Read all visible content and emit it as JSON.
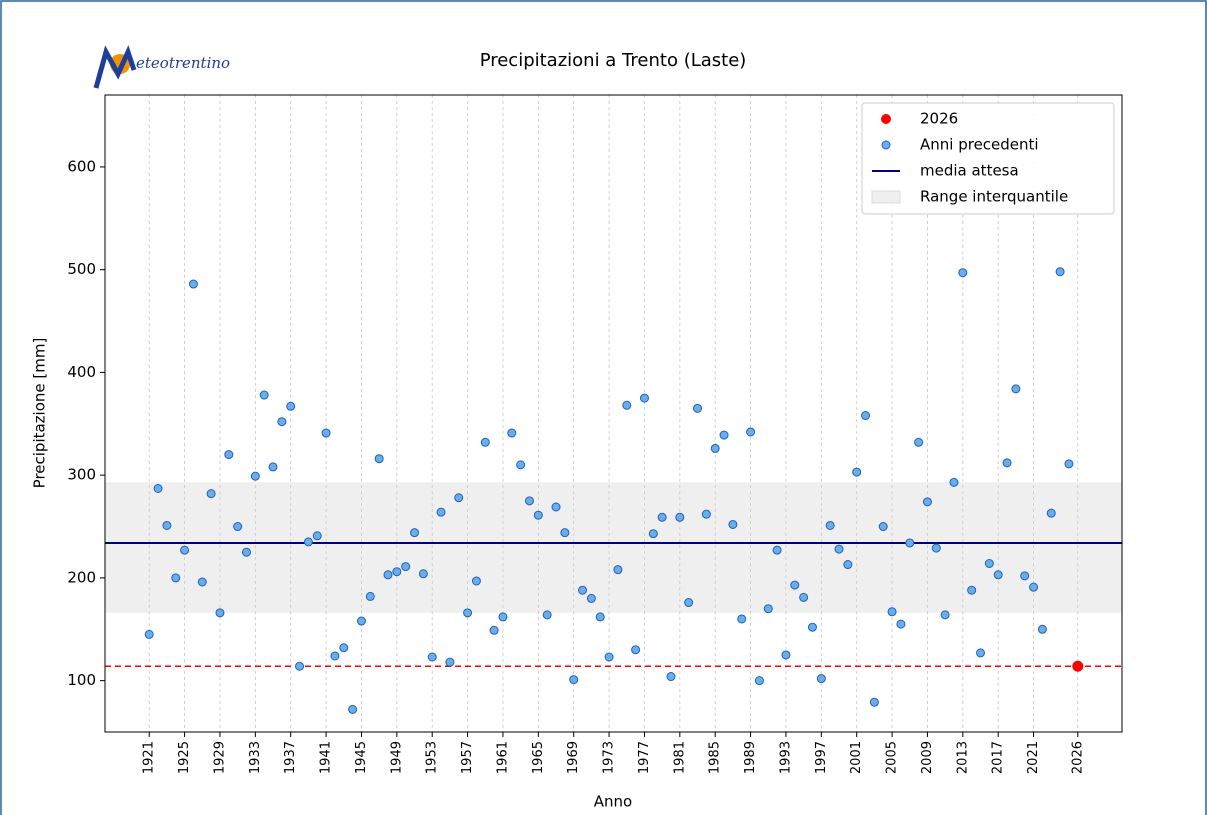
{
  "chart_data": {
    "type": "scatter",
    "title": "Precipitazioni a Trento (Laste)",
    "logo": "eteotrentino",
    "x_label": "Anno",
    "y_label": "Precipitazione [mm]",
    "series": [
      {
        "name": "2026",
        "color": "#ff0000",
        "x": [
          2026
        ],
        "values": [
          114
        ]
      },
      {
        "name": "Anni precedenti",
        "color": "#6aaee8",
        "x": [
          1921,
          1922,
          1923,
          1924,
          1925,
          1926,
          1927,
          1928,
          1929,
          1930,
          1931,
          1932,
          1933,
          1934,
          1935,
          1936,
          1937,
          1938,
          1939,
          1940,
          1941,
          1942,
          1943,
          1944,
          1945,
          1946,
          1947,
          1948,
          1949,
          1950,
          1951,
          1952,
          1953,
          1954,
          1955,
          1956,
          1957,
          1958,
          1959,
          1960,
          1961,
          1962,
          1963,
          1964,
          1965,
          1966,
          1967,
          1968,
          1969,
          1970,
          1971,
          1972,
          1973,
          1974,
          1975,
          1976,
          1977,
          1978,
          1979,
          1980,
          1981,
          1982,
          1983,
          1984,
          1985,
          1986,
          1987,
          1988,
          1989,
          1990,
          1991,
          1992,
          1993,
          1994,
          1995,
          1996,
          1997,
          1998,
          1999,
          2000,
          2001,
          2002,
          2003,
          2004,
          2005,
          2006,
          2007,
          2008,
          2009,
          2010,
          2011,
          2012,
          2013,
          2014,
          2015,
          2016,
          2017,
          2018,
          2019,
          2020,
          2021,
          2022,
          2023,
          2024,
          2025
        ],
        "values": [
          145,
          287,
          251,
          200,
          227,
          486,
          196,
          282,
          166,
          320,
          250,
          225,
          299,
          378,
          308,
          352,
          367,
          114,
          235,
          241,
          341,
          124,
          132,
          72,
          158,
          182,
          316,
          203,
          206,
          211,
          244,
          204,
          123,
          264,
          118,
          278,
          166,
          197,
          332,
          149,
          162,
          341,
          310,
          275,
          261,
          164,
          269,
          244,
          101,
          188,
          180,
          162,
          123,
          208,
          368,
          130,
          375,
          243,
          259,
          104,
          259,
          176,
          365,
          262,
          326,
          339,
          252,
          160,
          342,
          100,
          170,
          227,
          125,
          193,
          181,
          152,
          102,
          251,
          228,
          213,
          303,
          358,
          79,
          250,
          167,
          155,
          234,
          332,
          274,
          229,
          164,
          293,
          497,
          188,
          127,
          214,
          203,
          312,
          384,
          202,
          191,
          150,
          263,
          498,
          311
        ]
      }
    ],
    "mean": {
      "name": "media attesa",
      "value": 234,
      "color": "#000080"
    },
    "iqr": {
      "name": "Range interquantile",
      "values": [
        166,
        293
      ],
      "color": "#efefef"
    },
    "xlim": [
      1916,
      2031
    ],
    "ylim": [
      50,
      670
    ],
    "xticks": [
      1921,
      1925,
      1929,
      1933,
      1937,
      1941,
      1945,
      1949,
      1953,
      1957,
      1961,
      1965,
      1969,
      1973,
      1977,
      1981,
      1985,
      1989,
      1993,
      1997,
      2001,
      2005,
      2009,
      2013,
      2017,
      2021,
      2026
    ],
    "yticks": [
      100,
      200,
      300,
      400,
      500,
      600
    ],
    "grid": "x",
    "legend": "upper right"
  }
}
